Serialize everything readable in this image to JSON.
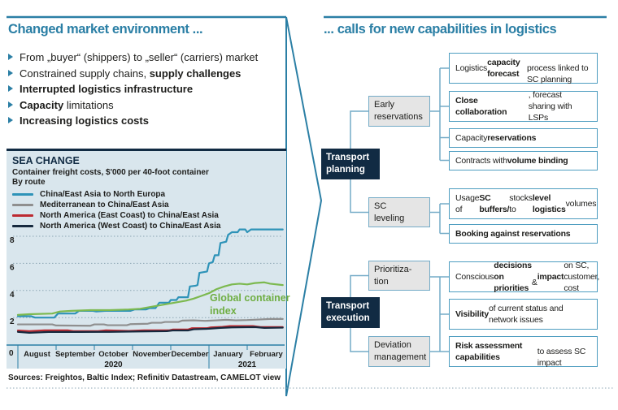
{
  "palette": {
    "accent_teal": "#2b7fa5",
    "navy": "#112b43",
    "connector_blue": "#74abc7",
    "chart_bg": "#d9e6ed",
    "annotation_green": "#6fae43"
  },
  "left": {
    "title": "Changed market environment ...",
    "bullets": [
      {
        "segments": [
          {
            "t": "From „buyer“ (shippers) to „seller“ (carriers) market",
            "b": false
          }
        ]
      },
      {
        "segments": [
          {
            "t": "Constrained supply chains, ",
            "b": false
          },
          {
            "t": "supply challenges",
            "b": true
          }
        ]
      },
      {
        "segments": [
          {
            "t": "Interrupted logistics infrastructure",
            "b": true
          }
        ]
      },
      {
        "segments": [
          {
            "t": "Capacity",
            "b": true
          },
          {
            "t": " limitations",
            "b": false
          }
        ]
      },
      {
        "segments": [
          {
            "t": "Increasing logistics costs",
            "b": true
          }
        ]
      }
    ],
    "sources": "Sources: Freightos, Baltic Index; Refinitiv Datastream, CAMELOT view"
  },
  "right": {
    "title": "... calls for new capabilities in logistics",
    "stages": [
      {
        "label": "Transport\nplanning"
      },
      {
        "label": "Transport\nexecution"
      }
    ],
    "categories": [
      {
        "label": "Early\nreservations"
      },
      {
        "label": "SC\nleveling"
      },
      {
        "label": "Prioritiza-\ntion"
      },
      {
        "label": "Deviation\nmanagement"
      }
    ],
    "capabilities": [
      {
        "segments": [
          {
            "t": "Logistics ",
            "b": false
          },
          {
            "t": "capacity forecast",
            "b": true
          },
          {
            "t": "\nprocess linked to SC planning",
            "b": false
          }
        ]
      },
      {
        "segments": [
          {
            "t": "Close collaboration",
            "b": true
          },
          {
            "t": ", forecast\nsharing with LSPs",
            "b": false
          }
        ]
      },
      {
        "segments": [
          {
            "t": "Capacity ",
            "b": false
          },
          {
            "t": "reservations",
            "b": true
          }
        ]
      },
      {
        "segments": [
          {
            "t": "Contracts with ",
            "b": false
          },
          {
            "t": "volume binding",
            "b": true
          }
        ]
      },
      {
        "segments": [
          {
            "t": "Usage of ",
            "b": false
          },
          {
            "t": "SC buffers/",
            "b": true
          },
          {
            "t": " stocks to\n",
            "b": false
          },
          {
            "t": "level logistics",
            "b": true
          },
          {
            "t": " volumes",
            "b": false
          }
        ]
      },
      {
        "segments": [
          {
            "t": "Booking against reservations",
            "b": true
          }
        ]
      },
      {
        "segments": [
          {
            "t": "Conscious ",
            "b": false
          },
          {
            "t": "decisions on priorities",
            "b": true
          },
          {
            "t": "\n& ",
            "b": false
          },
          {
            "t": "impact",
            "b": true
          },
          {
            "t": " on SC, customer, cost",
            "b": false
          }
        ]
      },
      {
        "segments": [
          {
            "t": "Visibility",
            "b": true
          },
          {
            "t": " of current status and\nnetwork issues",
            "b": false
          }
        ]
      },
      {
        "segments": [
          {
            "t": "Risk assessment capabilities",
            "b": true
          },
          {
            "t": "\nto assess SC impact",
            "b": false
          }
        ]
      }
    ]
  },
  "chart_data": {
    "type": "line",
    "title": "SEA CHANGE",
    "subtitle": "Container freight costs, $'000 per 40-foot container",
    "group_label": "By route",
    "annotation_label": "Global container index",
    "ylim": [
      0,
      9
    ],
    "yticks": [
      2,
      4,
      6,
      8
    ],
    "grid": true,
    "legend_position": "top-left",
    "x_axis": {
      "origin_label": "0",
      "months": [
        "August",
        "September",
        "October",
        "November",
        "December",
        "January",
        "February"
      ],
      "year_labels": [
        {
          "label": "2020",
          "center_month": 2.5
        },
        {
          "label": "2021",
          "center_month": 6.0
        }
      ]
    },
    "series": [
      {
        "name": "China/East Asia to North Europa",
        "color": "#2e93b8",
        "in_legend": true,
        "points": [
          [
            0,
            2.1
          ],
          [
            0.35,
            2.1
          ],
          [
            0.45,
            2.0
          ],
          [
            0.95,
            2.0
          ],
          [
            1.05,
            2.3
          ],
          [
            1.5,
            2.3
          ],
          [
            1.6,
            2.5
          ],
          [
            1.95,
            2.5
          ],
          [
            2.05,
            2.45
          ],
          [
            2.3,
            2.5
          ],
          [
            2.95,
            2.5
          ],
          [
            3.05,
            2.6
          ],
          [
            3.35,
            2.6
          ],
          [
            3.45,
            2.7
          ],
          [
            3.6,
            2.7
          ],
          [
            3.7,
            3.1
          ],
          [
            3.95,
            3.1
          ],
          [
            4.0,
            3.3
          ],
          [
            4.15,
            3.3
          ],
          [
            4.2,
            3.5
          ],
          [
            4.45,
            3.5
          ],
          [
            4.5,
            4.3
          ],
          [
            4.65,
            4.35
          ],
          [
            4.7,
            4.4
          ],
          [
            4.75,
            5.3
          ],
          [
            4.95,
            5.4
          ],
          [
            5.0,
            6.0
          ],
          [
            5.1,
            6.1
          ],
          [
            5.15,
            6.6
          ],
          [
            5.25,
            6.6
          ],
          [
            5.3,
            7.5
          ],
          [
            5.45,
            7.6
          ],
          [
            5.5,
            8.1
          ],
          [
            5.6,
            8.3
          ],
          [
            5.75,
            8.3
          ],
          [
            5.8,
            8.5
          ],
          [
            5.95,
            8.5
          ],
          [
            6.0,
            8.3
          ],
          [
            6.1,
            8.5
          ],
          [
            6.93,
            8.5
          ]
        ]
      },
      {
        "name": "Mediterranean to China/East Asia",
        "color": "#8f8f8f",
        "in_legend": true,
        "points": [
          [
            0,
            1.5
          ],
          [
            0.9,
            1.5
          ],
          [
            1.0,
            1.42
          ],
          [
            1.9,
            1.4
          ],
          [
            2.0,
            1.5
          ],
          [
            2.25,
            1.5
          ],
          [
            2.35,
            1.44
          ],
          [
            2.85,
            1.44
          ],
          [
            2.95,
            1.52
          ],
          [
            3.4,
            1.55
          ],
          [
            3.5,
            1.62
          ],
          [
            3.75,
            1.62
          ],
          [
            3.85,
            1.68
          ],
          [
            4.2,
            1.68
          ],
          [
            4.3,
            1.78
          ],
          [
            4.6,
            1.8
          ],
          [
            4.9,
            1.76
          ],
          [
            5.2,
            1.8
          ],
          [
            5.45,
            1.84
          ],
          [
            5.7,
            1.8
          ],
          [
            6.0,
            1.82
          ],
          [
            6.3,
            1.86
          ],
          [
            6.6,
            1.9
          ],
          [
            6.93,
            1.9
          ]
        ]
      },
      {
        "name": "North America (East Coast) to China/East Asia",
        "color": "#bc2a31",
        "in_legend": true,
        "points": [
          [
            0,
            1.05
          ],
          [
            0.3,
            1.0
          ],
          [
            0.7,
            1.06
          ],
          [
            1.3,
            1.06
          ],
          [
            1.45,
            1.0
          ],
          [
            2.1,
            1.0
          ],
          [
            2.3,
            1.06
          ],
          [
            2.9,
            1.02
          ],
          [
            3.3,
            1.06
          ],
          [
            3.95,
            1.06
          ],
          [
            4.05,
            1.12
          ],
          [
            4.45,
            1.12
          ],
          [
            4.55,
            1.22
          ],
          [
            4.95,
            1.22
          ],
          [
            5.05,
            1.28
          ],
          [
            5.35,
            1.32
          ],
          [
            5.55,
            1.38
          ],
          [
            6.15,
            1.38
          ],
          [
            6.35,
            1.3
          ],
          [
            6.93,
            1.3
          ]
        ]
      },
      {
        "name": "North America (West Coast) to China/East Asia",
        "color": "#16293e",
        "in_legend": true,
        "points": [
          [
            0,
            0.95
          ],
          [
            0.3,
            0.88
          ],
          [
            0.8,
            0.94
          ],
          [
            1.6,
            0.94
          ],
          [
            2.4,
            0.95
          ],
          [
            3.2,
            0.98
          ],
          [
            3.9,
            1.0
          ],
          [
            4.05,
            1.05
          ],
          [
            4.45,
            1.05
          ],
          [
            4.6,
            1.14
          ],
          [
            5.0,
            1.18
          ],
          [
            5.3,
            1.24
          ],
          [
            5.6,
            1.28
          ],
          [
            6.2,
            1.3
          ],
          [
            6.45,
            1.24
          ],
          [
            6.93,
            1.26
          ]
        ]
      },
      {
        "name": "Global container index",
        "color": "#7cb94f",
        "in_legend": false,
        "points": [
          [
            0,
            2.2
          ],
          [
            0.3,
            2.25
          ],
          [
            0.9,
            2.3
          ],
          [
            1.1,
            2.45
          ],
          [
            1.4,
            2.5
          ],
          [
            1.9,
            2.55
          ],
          [
            2.4,
            2.55
          ],
          [
            2.9,
            2.6
          ],
          [
            3.2,
            2.65
          ],
          [
            3.5,
            2.8
          ],
          [
            3.8,
            2.95
          ],
          [
            4.1,
            3.1
          ],
          [
            4.4,
            3.25
          ],
          [
            4.6,
            3.4
          ],
          [
            4.8,
            3.6
          ],
          [
            5.0,
            3.8
          ],
          [
            5.2,
            4.1
          ],
          [
            5.4,
            4.3
          ],
          [
            5.6,
            4.45
          ],
          [
            5.8,
            4.5
          ],
          [
            6.0,
            4.45
          ],
          [
            6.2,
            4.55
          ],
          [
            6.45,
            4.6
          ],
          [
            6.6,
            4.5
          ],
          [
            6.93,
            4.4
          ]
        ]
      }
    ]
  }
}
